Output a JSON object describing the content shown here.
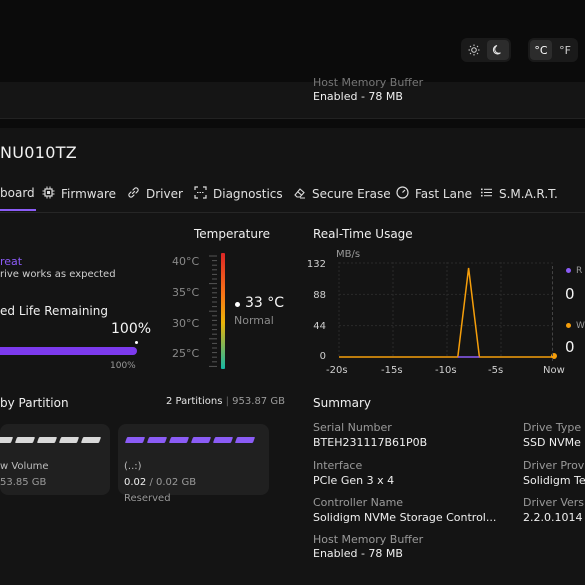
{
  "header": {
    "theme_icons": [
      "sun-icon",
      "moon-icon"
    ],
    "unit_c": "°C",
    "unit_f": "°F"
  },
  "prev_card": {
    "hmb_label": "Host Memory Buffer",
    "hmb_value": "Enabled - 78 MB"
  },
  "drive": {
    "title": "NU010TZ"
  },
  "tabs": [
    {
      "label": "board",
      "icon": "dashboard-icon"
    },
    {
      "label": "Firmware",
      "icon": "chip-icon"
    },
    {
      "label": "Driver",
      "icon": "link-icon"
    },
    {
      "label": "Diagnostics",
      "icon": "scan-icon"
    },
    {
      "label": "Secure Erase",
      "icon": "eraser-icon"
    },
    {
      "label": "Fast Lane",
      "icon": "gauge-icon"
    },
    {
      "label": "S.M.A.R.T.",
      "icon": "list-icon"
    }
  ],
  "health": {
    "status": "reat",
    "description": "rive works as expected"
  },
  "life": {
    "label": "ed Life Remaining",
    "percent_text": "100%",
    "percent_small": "100%",
    "fraction": 1.0,
    "color": "#7c3aed"
  },
  "temperature": {
    "title": "Temperature",
    "ticks": [
      "40°C",
      "35°C",
      "30°C",
      "25°C"
    ],
    "value": "33 °C",
    "state": "Normal"
  },
  "usage": {
    "title": "Real-Time Usage",
    "unit": "MB/s",
    "y_ticks": [
      "132",
      "88",
      "44",
      "0"
    ],
    "x_ticks": [
      "-20s",
      "-15s",
      "-10s",
      "-5s",
      "Now"
    ],
    "read_label": "R",
    "read_value": "0",
    "write_label": "W",
    "write_value": "0",
    "read_color": "#8b5cf6",
    "write_color": "#f59e0b"
  },
  "chart_data": {
    "type": "line",
    "title": "Real-Time Usage",
    "ylabel": "MB/s",
    "x": [
      -20,
      -15,
      -10,
      -9,
      -8,
      -7,
      -6,
      -5,
      0
    ],
    "ylim": [
      0,
      132
    ],
    "series": [
      {
        "values": [
          0,
          0,
          0,
          0,
          125,
          0,
          0,
          0,
          0
        ]
      },
      {
        "values": [
          0,
          0,
          0,
          0,
          0,
          0,
          0,
          0,
          0
        ]
      }
    ]
  },
  "partitions": {
    "title": "by Partition",
    "count_text": "2 Partitions",
    "total": "953.87 GB",
    "items": [
      {
        "name": "w Volume",
        "size": "53.85 GB",
        "extra": ""
      },
      {
        "name": "(..:)",
        "used": "0.02",
        "total": "/ 0.02 GB",
        "type": "Reserved"
      }
    ]
  },
  "summary": {
    "title": "Summary",
    "serial_label": "Serial Number",
    "serial_value": "BTEH231117B61P0B",
    "interface_label": "Interface",
    "interface_value": "PCIe Gen 3 x 4",
    "controller_label": "Controller Name",
    "controller_value": "Solidigm NVMe Storage Control...",
    "hmb_label": "Host Memory Buffer",
    "hmb_value": "Enabled - 78 MB",
    "drive_type_label": "Drive Type",
    "drive_type_value": "SSD NVMe",
    "driver_prov_label": "Driver Provi",
    "driver_prov_value": "Solidigm Te",
    "driver_ver_label": "Driver Versi",
    "driver_ver_value": "2.2.0.1014"
  }
}
